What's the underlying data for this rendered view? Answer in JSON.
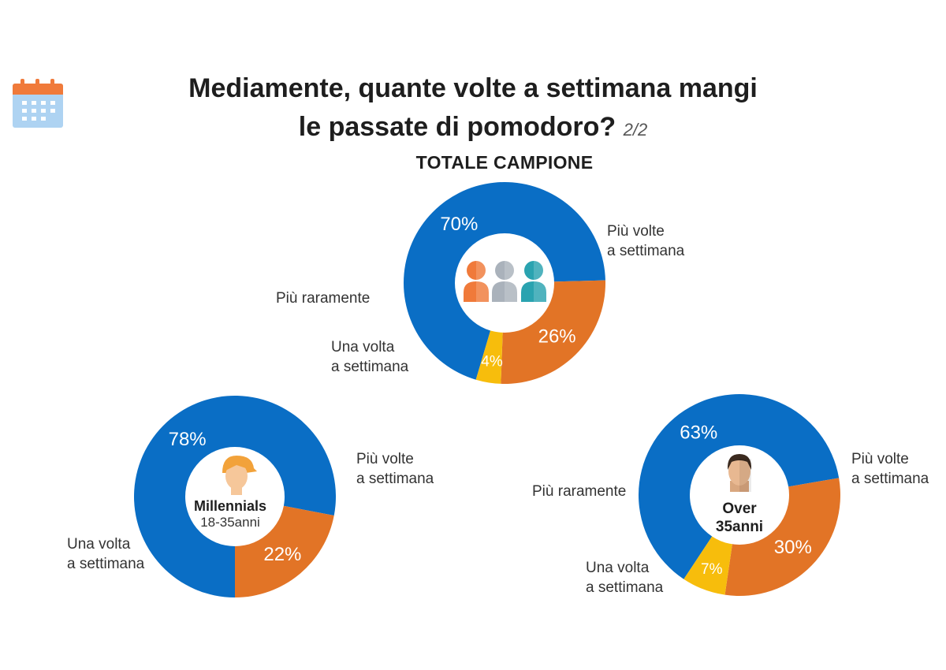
{
  "header": {
    "title_line1": "Mediamente, quante volte a settimana mangi",
    "title_line2": "le passate di pomodoro?",
    "page_indicator": "2/2",
    "icon": "calendar-icon"
  },
  "colors": {
    "blue": "#0a6ec5",
    "orange": "#e27426",
    "yellow": "#f7bd0c",
    "white": "#ffffff"
  },
  "chart_data": [
    {
      "type": "pie",
      "title": "TOTALE CAMPIONE",
      "center_icon": "people-group-icon",
      "center_label": "",
      "center_sublabel": "",
      "slices": [
        {
          "label": "Più volte a settimana",
          "label_lines": [
            "Più volte",
            "a settimana"
          ],
          "value": 70,
          "display": "70%",
          "color": "#0a6ec5"
        },
        {
          "label": "Una volta a settimana",
          "label_lines": [
            "Una volta",
            "a settimana"
          ],
          "value": 26,
          "display": "26%",
          "color": "#e27426"
        },
        {
          "label": "Più raramente",
          "label_lines": [
            "Più raramente"
          ],
          "value": 4,
          "display": "4%",
          "color": "#f7bd0c"
        }
      ]
    },
    {
      "type": "pie",
      "title": "",
      "center_icon": "young-person-icon",
      "center_label": "Millennials",
      "center_sublabel": "18-35anni",
      "slices": [
        {
          "label": "Più volte a settimana",
          "label_lines": [
            "Più volte",
            "a settimana"
          ],
          "value": 78,
          "display": "78%",
          "color": "#0a6ec5"
        },
        {
          "label": "Una volta a settimana",
          "label_lines": [
            "Una volta",
            "a settimana"
          ],
          "value": 22,
          "display": "22%",
          "color": "#e27426"
        }
      ]
    },
    {
      "type": "pie",
      "title": "",
      "center_icon": "adult-man-icon",
      "center_label": "Over",
      "center_sublabel": "35anni",
      "slices": [
        {
          "label": "Più volte a settimana",
          "label_lines": [
            "Più volte",
            "a settimana"
          ],
          "value": 63,
          "display": "63%",
          "color": "#0a6ec5"
        },
        {
          "label": "Una volta a settimana",
          "label_lines": [
            "Una volta",
            "a settimana"
          ],
          "value": 30,
          "display": "30%",
          "color": "#e27426"
        },
        {
          "label": "Più raramente",
          "label_lines": [
            "Più raramente"
          ],
          "value": 7,
          "display": "7%",
          "color": "#f7bd0c"
        }
      ]
    }
  ]
}
